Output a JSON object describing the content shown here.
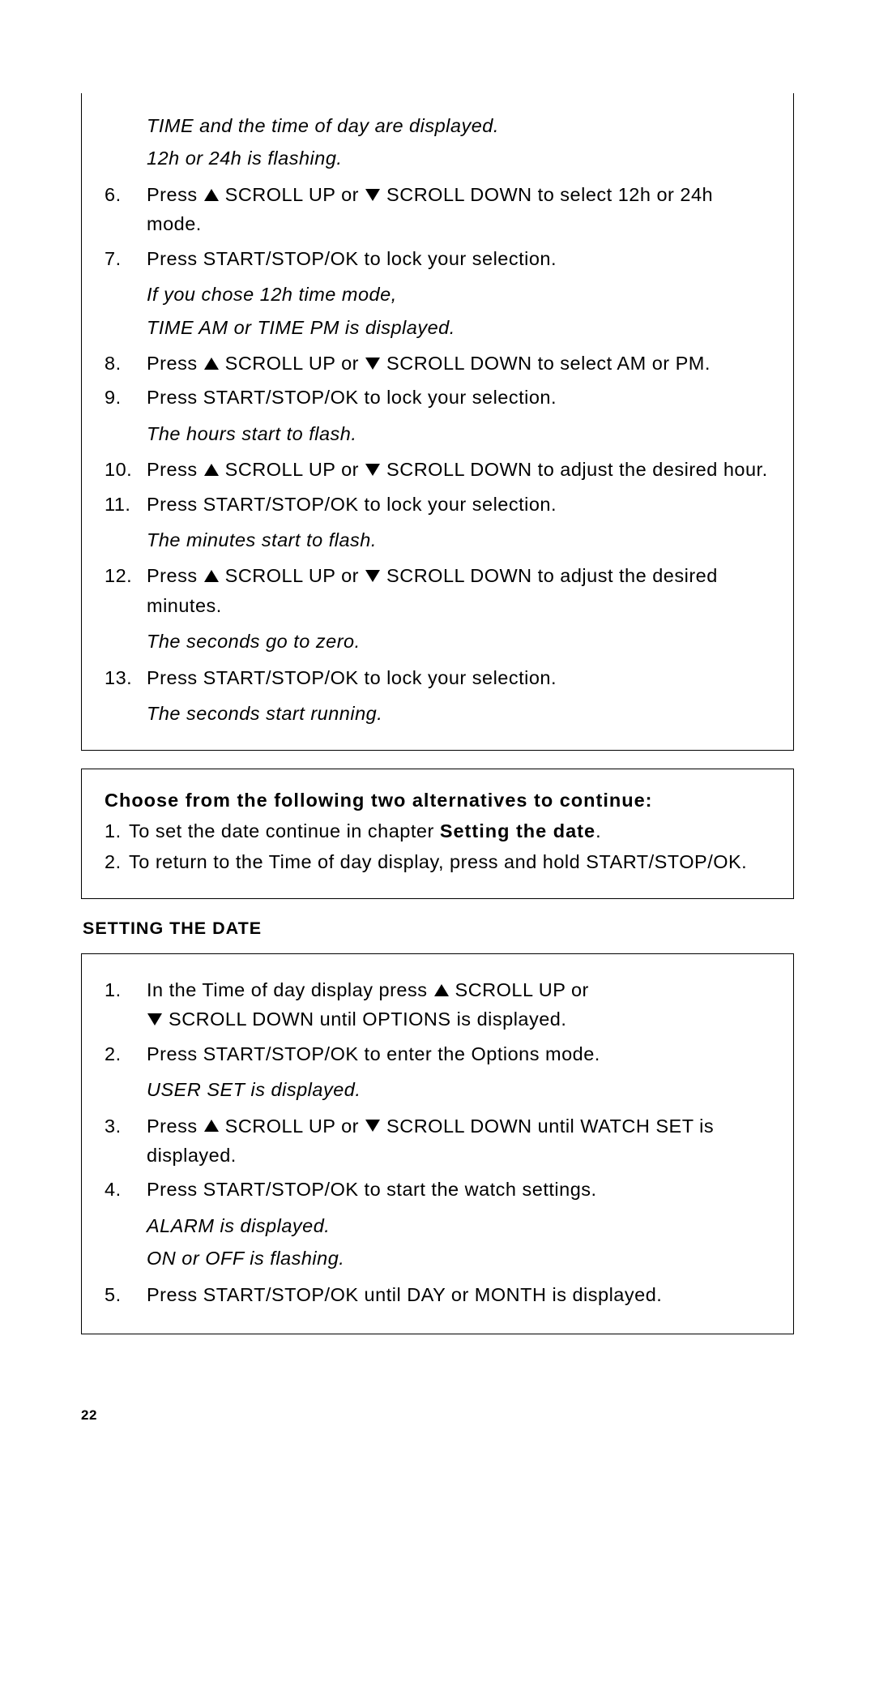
{
  "topNote1": "TIME and the time of day are displayed.",
  "topNote2": "12h or 24h is flashing.",
  "s6a": "Press ",
  "s6b": " SCROLL UP or ",
  "s6c": " SCROLL DOWN to select 12h or 24h mode.",
  "s7": "Press START/STOP/OK to lock your selection.",
  "n7a": "If you chose 12h time mode,",
  "n7b": "TIME AM or TIME PM is displayed.",
  "s8a": "Press ",
  "s8b": " SCROLL UP or ",
  "s8c": " SCROLL DOWN to select AM or PM.",
  "s9": "Press START/STOP/OK to lock your selection.",
  "n9": "The hours start to flash.",
  "s10a": "Press ",
  "s10b": " SCROLL UP or ",
  "s10c": " SCROLL DOWN to adjust the desired hour.",
  "s11": "Press START/STOP/OK to lock your selection.",
  "n11": "The minutes start to flash.",
  "s12a": "Press ",
  "s12b": " SCROLL UP or ",
  "s12c": " SCROLL DOWN to adjust the desired minutes.",
  "n12": "The seconds go to zero.",
  "s13": "Press START/STOP/OK to lock your selection.",
  "n13": "The seconds start running.",
  "altHeading": "Choose from the following two alternatives to continue:",
  "alt1a": "To set the date continue in chapter ",
  "alt1b": "Setting the date",
  "alt1c": ".",
  "alt2": "To return to the Time of day display, press and hold START/STOP/OK.",
  "sectionTitle": "SETTING THE DATE",
  "d1a": "In the Time of day display press ",
  "d1b": " SCROLL UP or ",
  "d1c": " SCROLL DOWN until OPTIONS is displayed.",
  "d2": "Press START/STOP/OK to enter the Options mode.",
  "dn2": "USER SET is displayed.",
  "d3a": "Press ",
  "d3b": " SCROLL UP or ",
  "d3c": " SCROLL DOWN until WATCH SET is displayed.",
  "d4": "Press START/STOP/OK to start the watch settings.",
  "dn4a": "ALARM is displayed.",
  "dn4b": "ON or OFF is flashing.",
  "d5": "Press START/STOP/OK until DAY or MONTH is displayed.",
  "pageNum": "22",
  "nums": {
    "n1": "1.",
    "n2": "2.",
    "n3": "3.",
    "n4": "4.",
    "n5": "5.",
    "n6": "6.",
    "n7": "7.",
    "n8": "8.",
    "n9": "9.",
    "n10": "10.",
    "n11": "11.",
    "n12": "12.",
    "n13": "13."
  }
}
